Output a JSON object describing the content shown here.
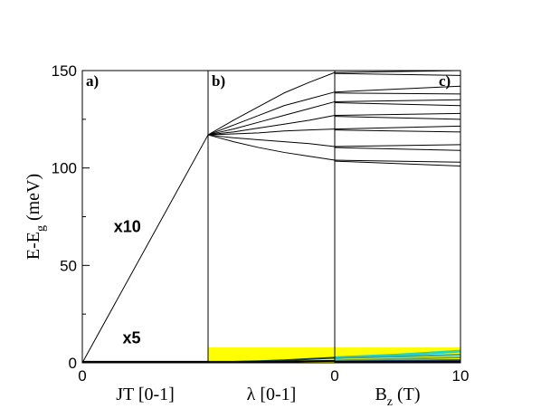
{
  "chart_data": {
    "type": "line",
    "ylabel": "E-E",
    "ylabel_sub": "g",
    "ylabel_unit": " (meV)",
    "ylim": [
      0,
      150
    ],
    "yticks": [
      0,
      50,
      100,
      150
    ],
    "panels": [
      {
        "label": "a)",
        "xlabel": "JT  [0-1]",
        "xlim": [
          0,
          1
        ],
        "xticks": [
          {
            "value": 0,
            "label": "0"
          }
        ],
        "annotations": [
          {
            "text": "x10",
            "x": 0.25,
            "y": 67
          },
          {
            "text": "x5",
            "x": 0.32,
            "y": 10
          }
        ],
        "series": [
          {
            "x": [
              0,
              1
            ],
            "y": [
              0,
              117
            ],
            "color": "#000000"
          },
          {
            "x": [
              0,
              1
            ],
            "y": [
              0.3,
              0.3
            ],
            "color": "#000000",
            "width": 3
          }
        ]
      },
      {
        "label": "b)",
        "xlabel": "λ [0-1]",
        "xlim": [
          0,
          1
        ],
        "xticks": [],
        "bands": [
          {
            "y0": 0,
            "y1": 8,
            "color": "#ffff00"
          }
        ],
        "series": [
          {
            "x": [
              0,
              0.2,
              0.4,
              0.6,
              0.8,
              1
            ],
            "y": [
              117,
              124.5,
              131.5,
              138.5,
              144,
              149
            ],
            "color": "#000000"
          },
          {
            "x": [
              0,
              0.2,
              0.4,
              0.6,
              0.8,
              1
            ],
            "y": [
              117,
              122,
              127,
              132,
              135.5,
              139
            ],
            "color": "#000000"
          },
          {
            "x": [
              0,
              0.2,
              0.4,
              0.6,
              0.8,
              1
            ],
            "y": [
              117,
              120,
              123.5,
              127,
              130.5,
              134
            ],
            "color": "#000000"
          },
          {
            "x": [
              0,
              0.2,
              0.4,
              0.6,
              0.8,
              1
            ],
            "y": [
              117,
              118.5,
              120.5,
              122.5,
              124.5,
              127
            ],
            "color": "#000000"
          },
          {
            "x": [
              0,
              0.2,
              0.4,
              0.6,
              0.8,
              1
            ],
            "y": [
              117,
              117.5,
              118,
              119,
              119.5,
              120
            ],
            "color": "#000000"
          },
          {
            "x": [
              0,
              0.2,
              0.4,
              0.6,
              0.8,
              1
            ],
            "y": [
              117,
              115.5,
              114.5,
              113.5,
              112.5,
              111
            ],
            "color": "#000000"
          },
          {
            "x": [
              0,
              0.2,
              0.4,
              0.6,
              0.8,
              1
            ],
            "y": [
              117,
              113.5,
              110.5,
              108,
              106,
              104
            ],
            "color": "#000000"
          },
          {
            "x": [
              0,
              0.2,
              0.4,
              0.6,
              0.8,
              1
            ],
            "y": [
              0.5,
              0.5,
              0.8,
              1.3,
              2.0,
              2.6
            ],
            "color": "#0b3c5d",
            "width": 2
          },
          {
            "x": [
              0,
              0.2,
              0.4,
              0.6,
              0.8,
              1
            ],
            "y": [
              0.3,
              0.3,
              0.4,
              0.6,
              0.8,
              1.0
            ],
            "color": "#000000",
            "width": 2
          }
        ]
      },
      {
        "label": "c)",
        "xlabel": "B",
        "xlabel_sub": "z",
        "xlabel_unit": " (T)",
        "xlim": [
          0,
          10
        ],
        "xticks": [
          {
            "value": 0,
            "label": "0"
          },
          {
            "value": 10,
            "label": "10"
          }
        ],
        "bands": [
          {
            "y0": 0,
            "y1": 8,
            "color": "#ffff00"
          }
        ],
        "series": [
          {
            "x": [
              0,
              10
            ],
            "y": [
              149,
              150
            ],
            "color": "#000000"
          },
          {
            "x": [
              0,
              10
            ],
            "y": [
              148.5,
              147.5
            ],
            "color": "#000000"
          },
          {
            "x": [
              0,
              10
            ],
            "y": [
              139,
              142
            ],
            "color": "#000000"
          },
          {
            "x": [
              0,
              10
            ],
            "y": [
              138.5,
              138
            ],
            "color": "#000000"
          },
          {
            "x": [
              0,
              10
            ],
            "y": [
              134,
              135
            ],
            "color": "#000000"
          },
          {
            "x": [
              0,
              10
            ],
            "y": [
              133.5,
              132
            ],
            "color": "#000000"
          },
          {
            "x": [
              0,
              10
            ],
            "y": [
              127,
              128
            ],
            "color": "#000000"
          },
          {
            "x": [
              0,
              10
            ],
            "y": [
              126.5,
              125
            ],
            "color": "#000000"
          },
          {
            "x": [
              0,
              10
            ],
            "y": [
              120,
              121.5
            ],
            "color": "#000000"
          },
          {
            "x": [
              0,
              10
            ],
            "y": [
              119.5,
              118.5
            ],
            "color": "#000000"
          },
          {
            "x": [
              0,
              10
            ],
            "y": [
              111,
              112
            ],
            "color": "#000000"
          },
          {
            "x": [
              0,
              10
            ],
            "y": [
              110.5,
              109
            ],
            "color": "#000000"
          },
          {
            "x": [
              0,
              10
            ],
            "y": [
              104,
              103
            ],
            "color": "#000000"
          },
          {
            "x": [
              0,
              10
            ],
            "y": [
              103.5,
              101
            ],
            "color": "#000000"
          },
          {
            "x": [
              0,
              5,
              10
            ],
            "y": [
              2.6,
              4.0,
              6.0
            ],
            "color": "#22d3c8",
            "width": 3
          },
          {
            "x": [
              0,
              5,
              10
            ],
            "y": [
              2.4,
              3.2,
              4.2
            ],
            "color": "#3aa8a0",
            "width": 2
          },
          {
            "x": [
              0,
              5,
              10
            ],
            "y": [
              1.2,
              2.0,
              2.8
            ],
            "color": "#6ea84a",
            "width": 2
          },
          {
            "x": [
              0,
              5,
              10
            ],
            "y": [
              0.7,
              1.0,
              1.4
            ],
            "color": "#1f4f8f",
            "width": 2
          },
          {
            "x": [
              0,
              10
            ],
            "y": [
              0.3,
              0.4
            ],
            "color": "#000000",
            "width": 3
          }
        ]
      }
    ]
  }
}
